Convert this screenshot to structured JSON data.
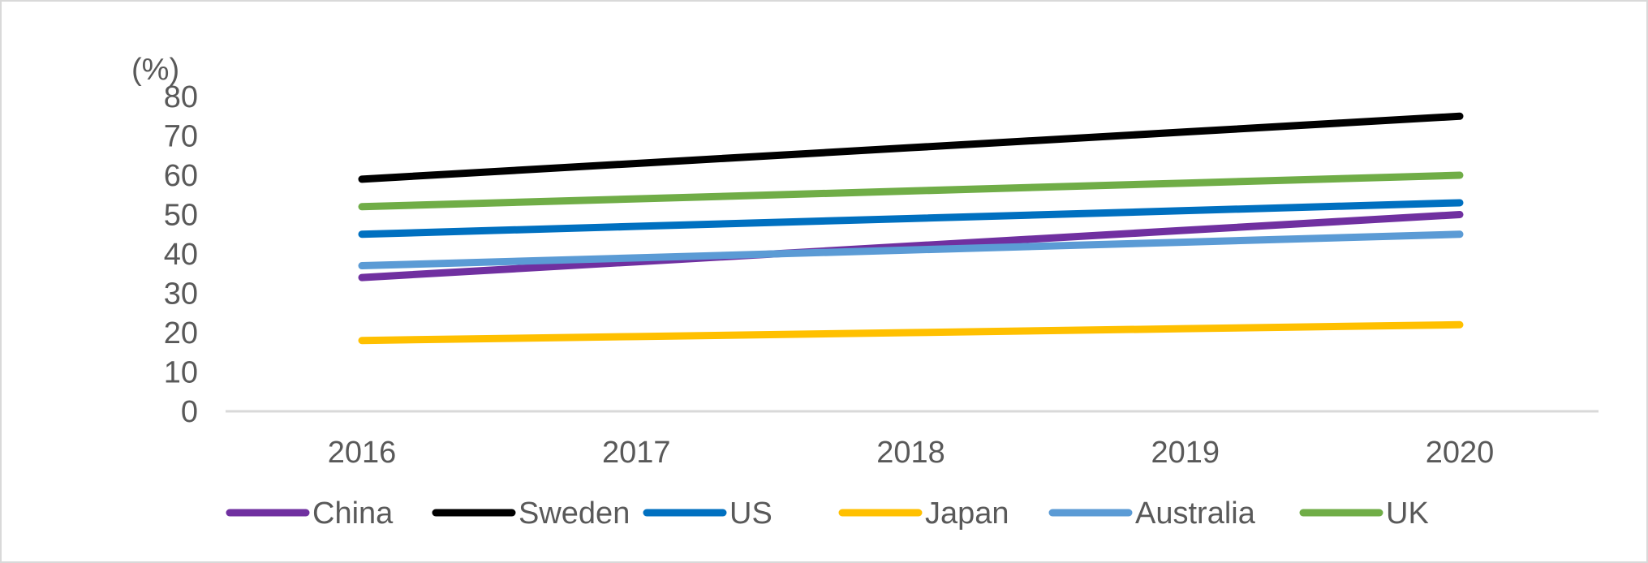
{
  "chart_data": {
    "type": "line",
    "title": "",
    "xlabel": "",
    "ylabel": "(%)",
    "ylim": [
      0,
      80
    ],
    "yticks": [
      0,
      10,
      20,
      30,
      40,
      50,
      60,
      70,
      80
    ],
    "categories": [
      "2016",
      "2017",
      "2018",
      "2019",
      "2020"
    ],
    "grid": false,
    "legend_position": "bottom",
    "series": [
      {
        "name": "China",
        "color": "#7030a0",
        "values": [
          34,
          38,
          42,
          46,
          50
        ]
      },
      {
        "name": "Sweden",
        "color": "#000000",
        "values": [
          59,
          63,
          67,
          71,
          75
        ]
      },
      {
        "name": "US",
        "color": "#0070c0",
        "values": [
          45,
          47,
          49,
          51,
          53
        ]
      },
      {
        "name": "Japan",
        "color": "#ffc000",
        "values": [
          18,
          19,
          20,
          21,
          22
        ]
      },
      {
        "name": "Australia",
        "color": "#5b9bd5",
        "values": [
          37,
          39,
          41,
          43,
          45
        ]
      },
      {
        "name": "UK",
        "color": "#70ad47",
        "values": [
          52,
          54,
          56,
          58,
          60
        ]
      }
    ]
  }
}
